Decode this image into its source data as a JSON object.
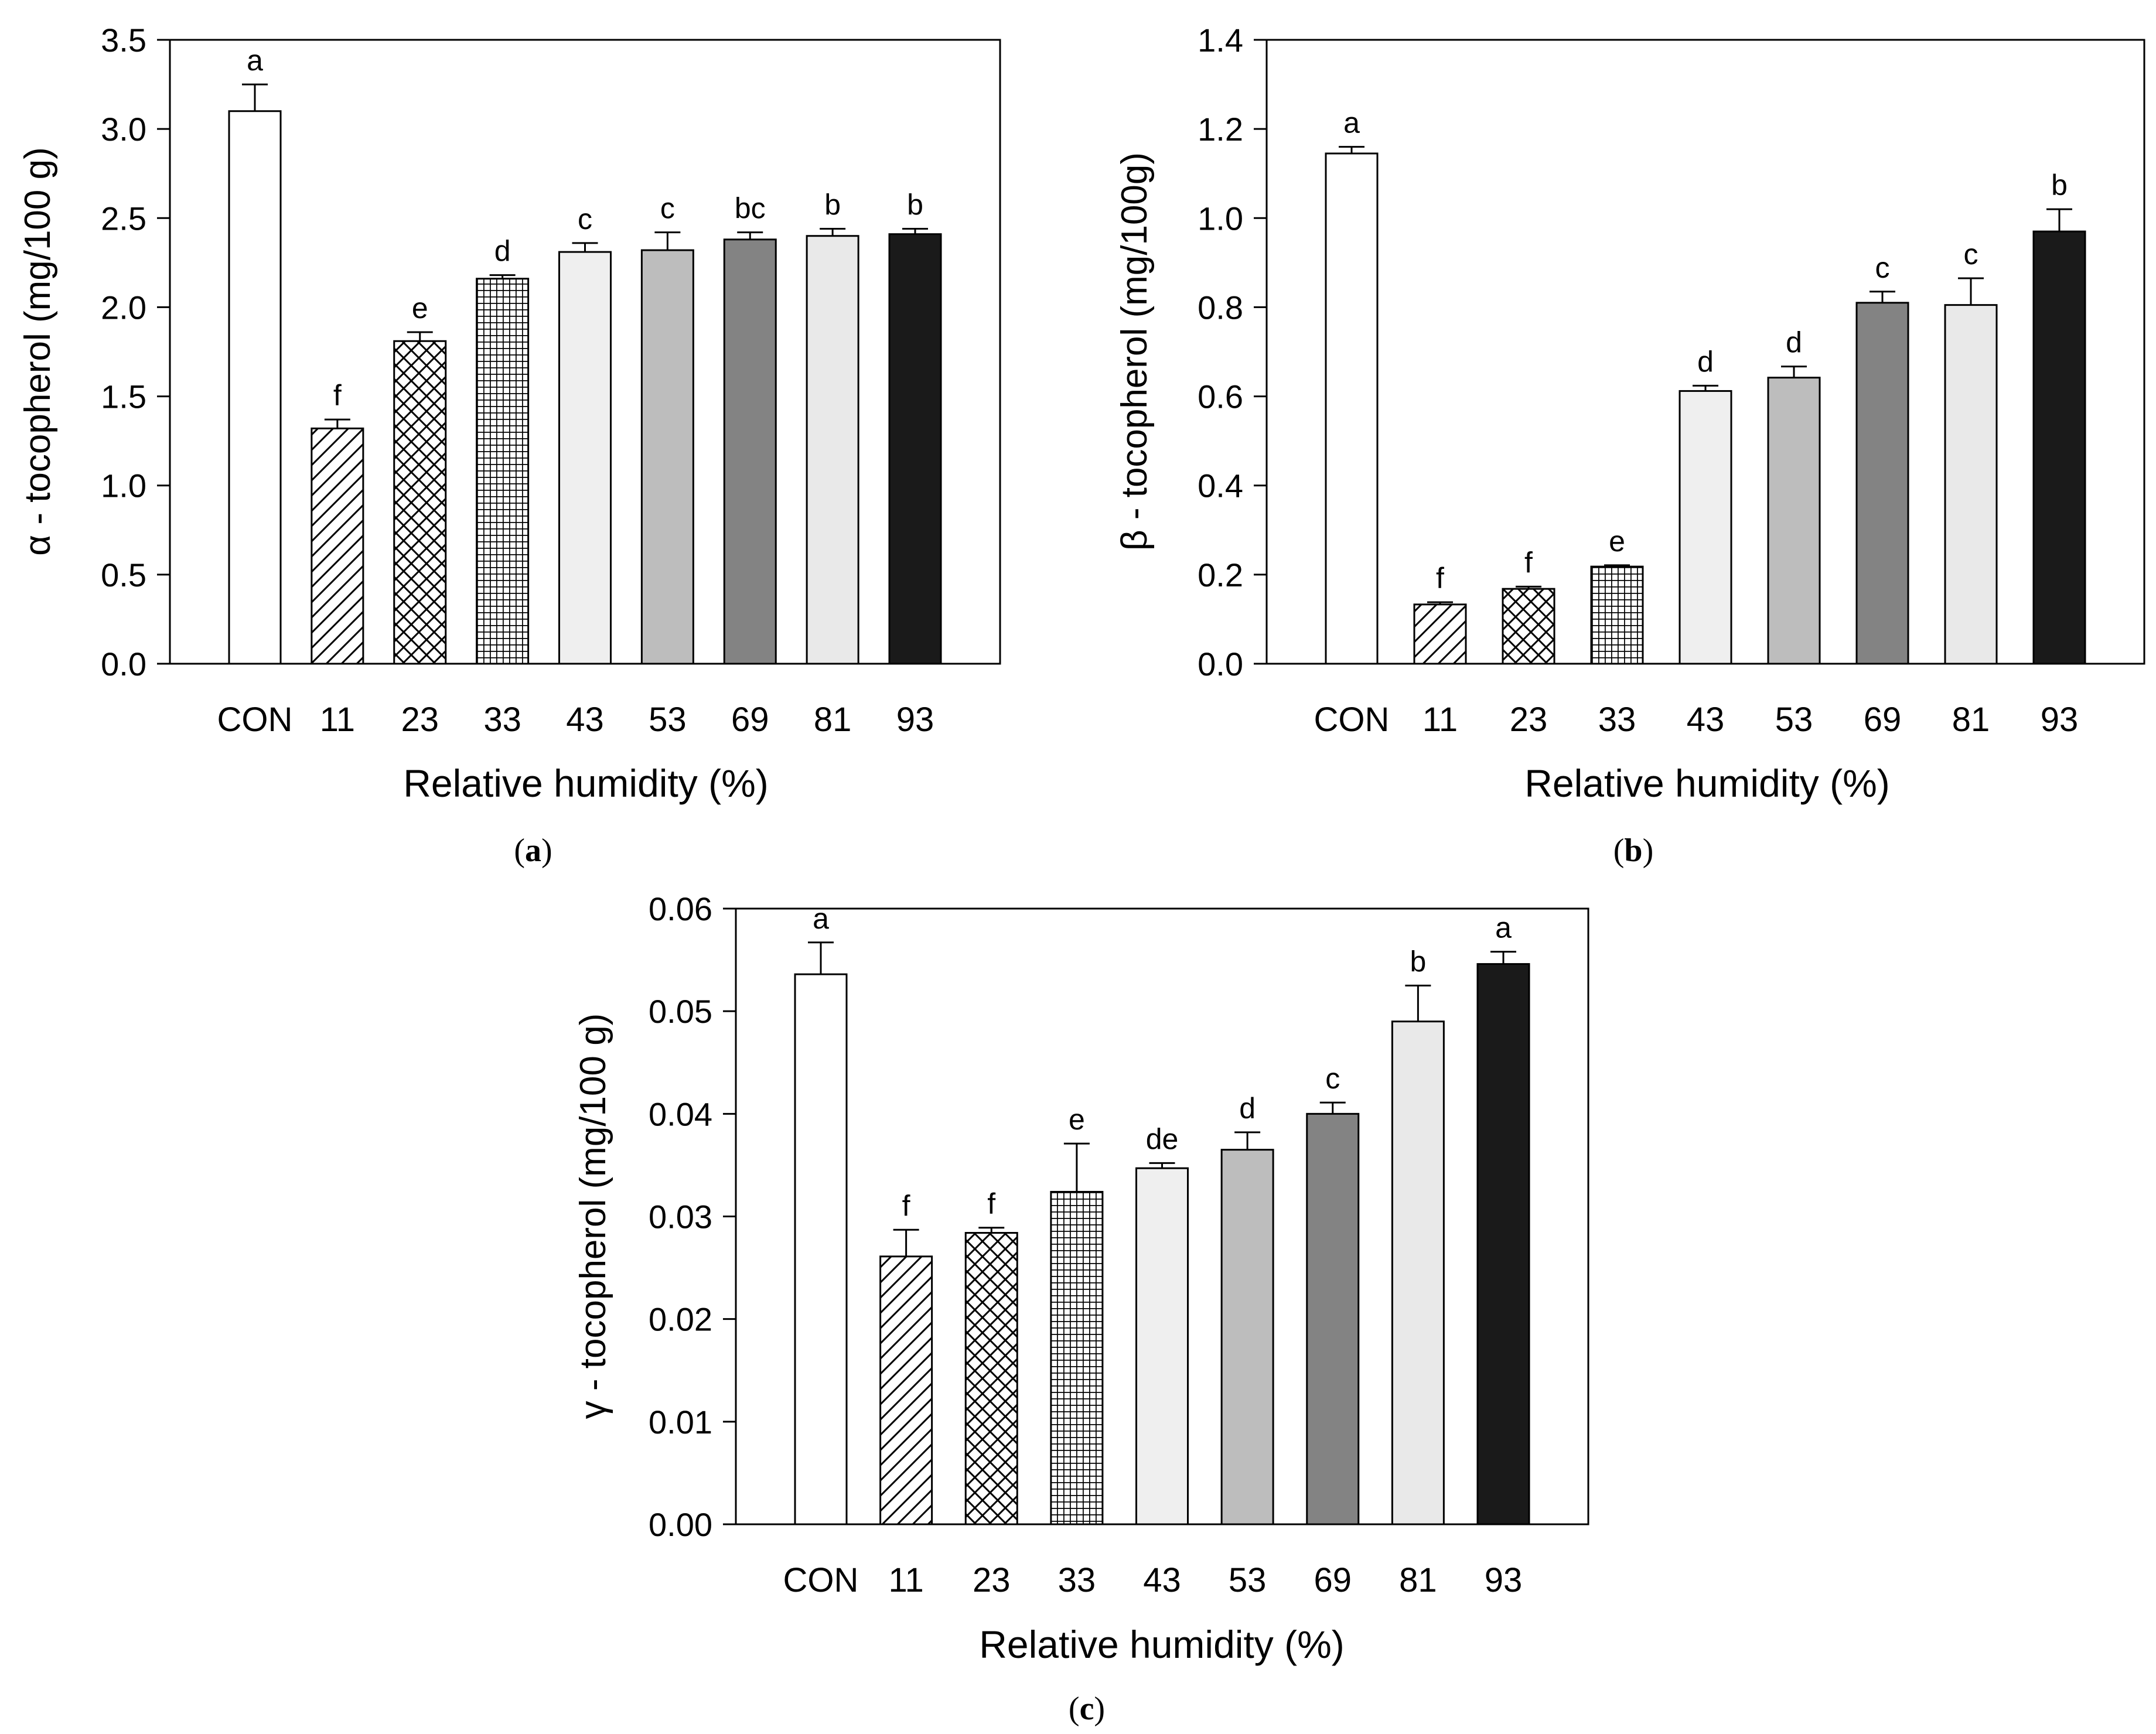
{
  "colors": {
    "background": "#ffffff",
    "axis": "#000000",
    "bar_outline": "#000000",
    "con": "#ffffff",
    "rh43": "#efefef",
    "rh53": "#bdbdbd",
    "rh69": "#838383",
    "rh81": "#e9e9e9",
    "rh93": "#1a1a1a"
  },
  "chart_data": [
    {
      "type": "bar",
      "panel": "(a)",
      "panel_letter": "a",
      "title": "",
      "xlabel": "Relative humidity (%)",
      "ylabel": "α  - tocopherol (mg/100 g)",
      "categories": [
        "CON",
        "11",
        "23",
        "33",
        "43",
        "53",
        "69",
        "81",
        "93"
      ],
      "values": [
        3.1,
        1.32,
        1.81,
        2.16,
        2.31,
        2.32,
        2.38,
        2.4,
        2.41
      ],
      "errors": [
        0.15,
        0.05,
        0.05,
        0.02,
        0.05,
        0.1,
        0.04,
        0.04,
        0.03
      ],
      "letters": [
        "a",
        "f",
        "e",
        "d",
        "c",
        "c",
        "bc",
        "b",
        "b"
      ],
      "ylim": [
        0,
        3.5
      ],
      "yticks": [
        "0.0",
        "0.5",
        "1.0",
        "1.5",
        "2.0",
        "2.5",
        "3.0",
        "3.5"
      ],
      "grid": false,
      "fills": [
        "white",
        "diagonal",
        "crosshatch",
        "grid",
        "#efefef",
        "#bdbdbd",
        "#838383",
        "#e9e9e9",
        "#1a1a1a"
      ]
    },
    {
      "type": "bar",
      "panel": "(b)",
      "panel_letter": "b",
      "title": "",
      "xlabel": "Relative humidity (%)",
      "ylabel": "β  - tocopherol (mg/100g)",
      "categories": [
        "CON",
        "11",
        "23",
        "33",
        "43",
        "53",
        "69",
        "81",
        "93"
      ],
      "values": [
        1.145,
        0.133,
        0.168,
        0.218,
        0.612,
        0.642,
        0.81,
        0.805,
        0.97
      ],
      "errors": [
        0.015,
        0.005,
        0.005,
        0.003,
        0.012,
        0.025,
        0.025,
        0.06,
        0.05
      ],
      "letters": [
        "a",
        "f",
        "f",
        "e",
        "d",
        "d",
        "c",
        "c",
        "b"
      ],
      "ylim": [
        0,
        1.4
      ],
      "yticks": [
        "0.0",
        "0.2",
        "0.4",
        "0.6",
        "0.8",
        "1.0",
        "1.2",
        "1.4"
      ],
      "grid": false,
      "fills": [
        "white",
        "diagonal",
        "crosshatch",
        "grid",
        "#efefef",
        "#bdbdbd",
        "#838383",
        "#e9e9e9",
        "#1a1a1a"
      ]
    },
    {
      "type": "bar",
      "panel": "(c)",
      "panel_letter": "c",
      "title": "",
      "xlabel": "Relative humidity (%)",
      "ylabel": "γ  - tocopherol (mg/100 g)",
      "categories": [
        "CON",
        "11",
        "23",
        "33",
        "43",
        "53",
        "69",
        "81",
        "93"
      ],
      "values": [
        0.0536,
        0.0261,
        0.0284,
        0.0324,
        0.0347,
        0.0365,
        0.04,
        0.049,
        0.0546
      ],
      "errors": [
        0.0031,
        0.0026,
        0.0005,
        0.0047,
        0.0005,
        0.0017,
        0.0011,
        0.0035,
        0.0012
      ],
      "letters": [
        "a",
        "f",
        "f",
        "e",
        "de",
        "d",
        "c",
        "b",
        "a"
      ],
      "ylim": [
        0,
        0.06
      ],
      "yticks": [
        "0.00",
        "0.01",
        "0.02",
        "0.03",
        "0.04",
        "0.05",
        "0.06"
      ],
      "grid": false,
      "fills": [
        "white",
        "diagonal",
        "crosshatch",
        "grid",
        "#efefef",
        "#bdbdbd",
        "#838383",
        "#e9e9e9",
        "#1a1a1a"
      ]
    }
  ]
}
